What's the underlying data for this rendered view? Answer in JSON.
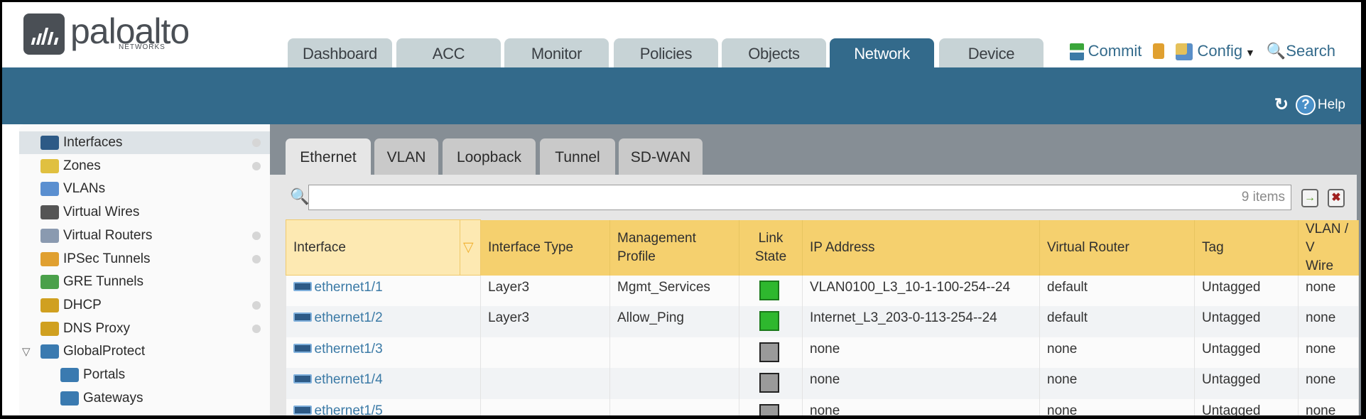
{
  "brand": {
    "name": "paloalto",
    "sub": "NETWORKS"
  },
  "main_tabs": [
    {
      "label": "Dashboard"
    },
    {
      "label": "ACC"
    },
    {
      "label": "Monitor"
    },
    {
      "label": "Policies"
    },
    {
      "label": "Objects"
    },
    {
      "label": "Network",
      "active": true
    },
    {
      "label": "Device"
    }
  ],
  "top_actions": {
    "commit": "Commit",
    "config": "Config",
    "search": "Search"
  },
  "band": {
    "help": "Help"
  },
  "sidebar": {
    "items": [
      {
        "label": "Interfaces",
        "icon": "interfaces-icon",
        "dot": true,
        "selected": true
      },
      {
        "label": "Zones",
        "icon": "zones-icon",
        "dot": true
      },
      {
        "label": "VLANs",
        "icon": "vlans-icon",
        "dot": false
      },
      {
        "label": "Virtual Wires",
        "icon": "virtual-wires-icon",
        "dot": false
      },
      {
        "label": "Virtual Routers",
        "icon": "virtual-routers-icon",
        "dot": true
      },
      {
        "label": "IPSec Tunnels",
        "icon": "ipsec-tunnels-icon",
        "dot": true
      },
      {
        "label": "GRE Tunnels",
        "icon": "gre-tunnels-icon",
        "dot": false
      },
      {
        "label": "DHCP",
        "icon": "dhcp-icon",
        "dot": true
      },
      {
        "label": "DNS Proxy",
        "icon": "dns-proxy-icon",
        "dot": true
      },
      {
        "label": "GlobalProtect",
        "icon": "globalprotect-icon",
        "dot": false,
        "expanded": true
      },
      {
        "label": "Portals",
        "icon": "portals-icon",
        "dot": false,
        "child": true
      },
      {
        "label": "Gateways",
        "icon": "gateways-icon",
        "dot": false,
        "child": true
      }
    ]
  },
  "sub_tabs": [
    {
      "label": "Ethernet",
      "active": true
    },
    {
      "label": "VLAN"
    },
    {
      "label": "Loopback"
    },
    {
      "label": "Tunnel"
    },
    {
      "label": "SD-WAN"
    }
  ],
  "filter": {
    "value": "",
    "count": "9 items"
  },
  "table": {
    "columns": [
      "Interface",
      "Interface Type",
      "Management Profile",
      "Link State",
      "IP Address",
      "Virtual Router",
      "Tag",
      "VLAN / Virtual Wire"
    ],
    "column_display": [
      "Interface",
      "Interface Type",
      "Management\nProfile",
      "Link\nState",
      "IP Address",
      "Virtual Router",
      "Tag",
      "VLAN / V\nWire"
    ],
    "rows": [
      {
        "interface": "ethernet1/1",
        "type": "Layer3",
        "profile": "Mgmt_Services",
        "link": "up",
        "ip": "VLAN0100_L3_10-1-100-254--24",
        "vr": "default",
        "tag": "Untagged",
        "vlan": "none"
      },
      {
        "interface": "ethernet1/2",
        "type": "Layer3",
        "profile": "Allow_Ping",
        "link": "up",
        "ip": "Internet_L3_203-0-113-254--24",
        "vr": "default",
        "tag": "Untagged",
        "vlan": "none"
      },
      {
        "interface": "ethernet1/3",
        "type": "",
        "profile": "",
        "link": "down",
        "ip": "none",
        "vr": "none",
        "tag": "Untagged",
        "vlan": "none"
      },
      {
        "interface": "ethernet1/4",
        "type": "",
        "profile": "",
        "link": "down",
        "ip": "none",
        "vr": "none",
        "tag": "Untagged",
        "vlan": "none"
      },
      {
        "interface": "ethernet1/5",
        "type": "",
        "profile": "",
        "link": "down",
        "ip": "none",
        "vr": "none",
        "tag": "Untagged",
        "vlan": "none"
      }
    ]
  },
  "colors": {
    "brand_blue": "#336a8b",
    "header_yellow": "#f5d06e",
    "link_blue": "#3b7aa6",
    "link_up": "#2eb82e",
    "link_down": "#9a9a9a"
  }
}
